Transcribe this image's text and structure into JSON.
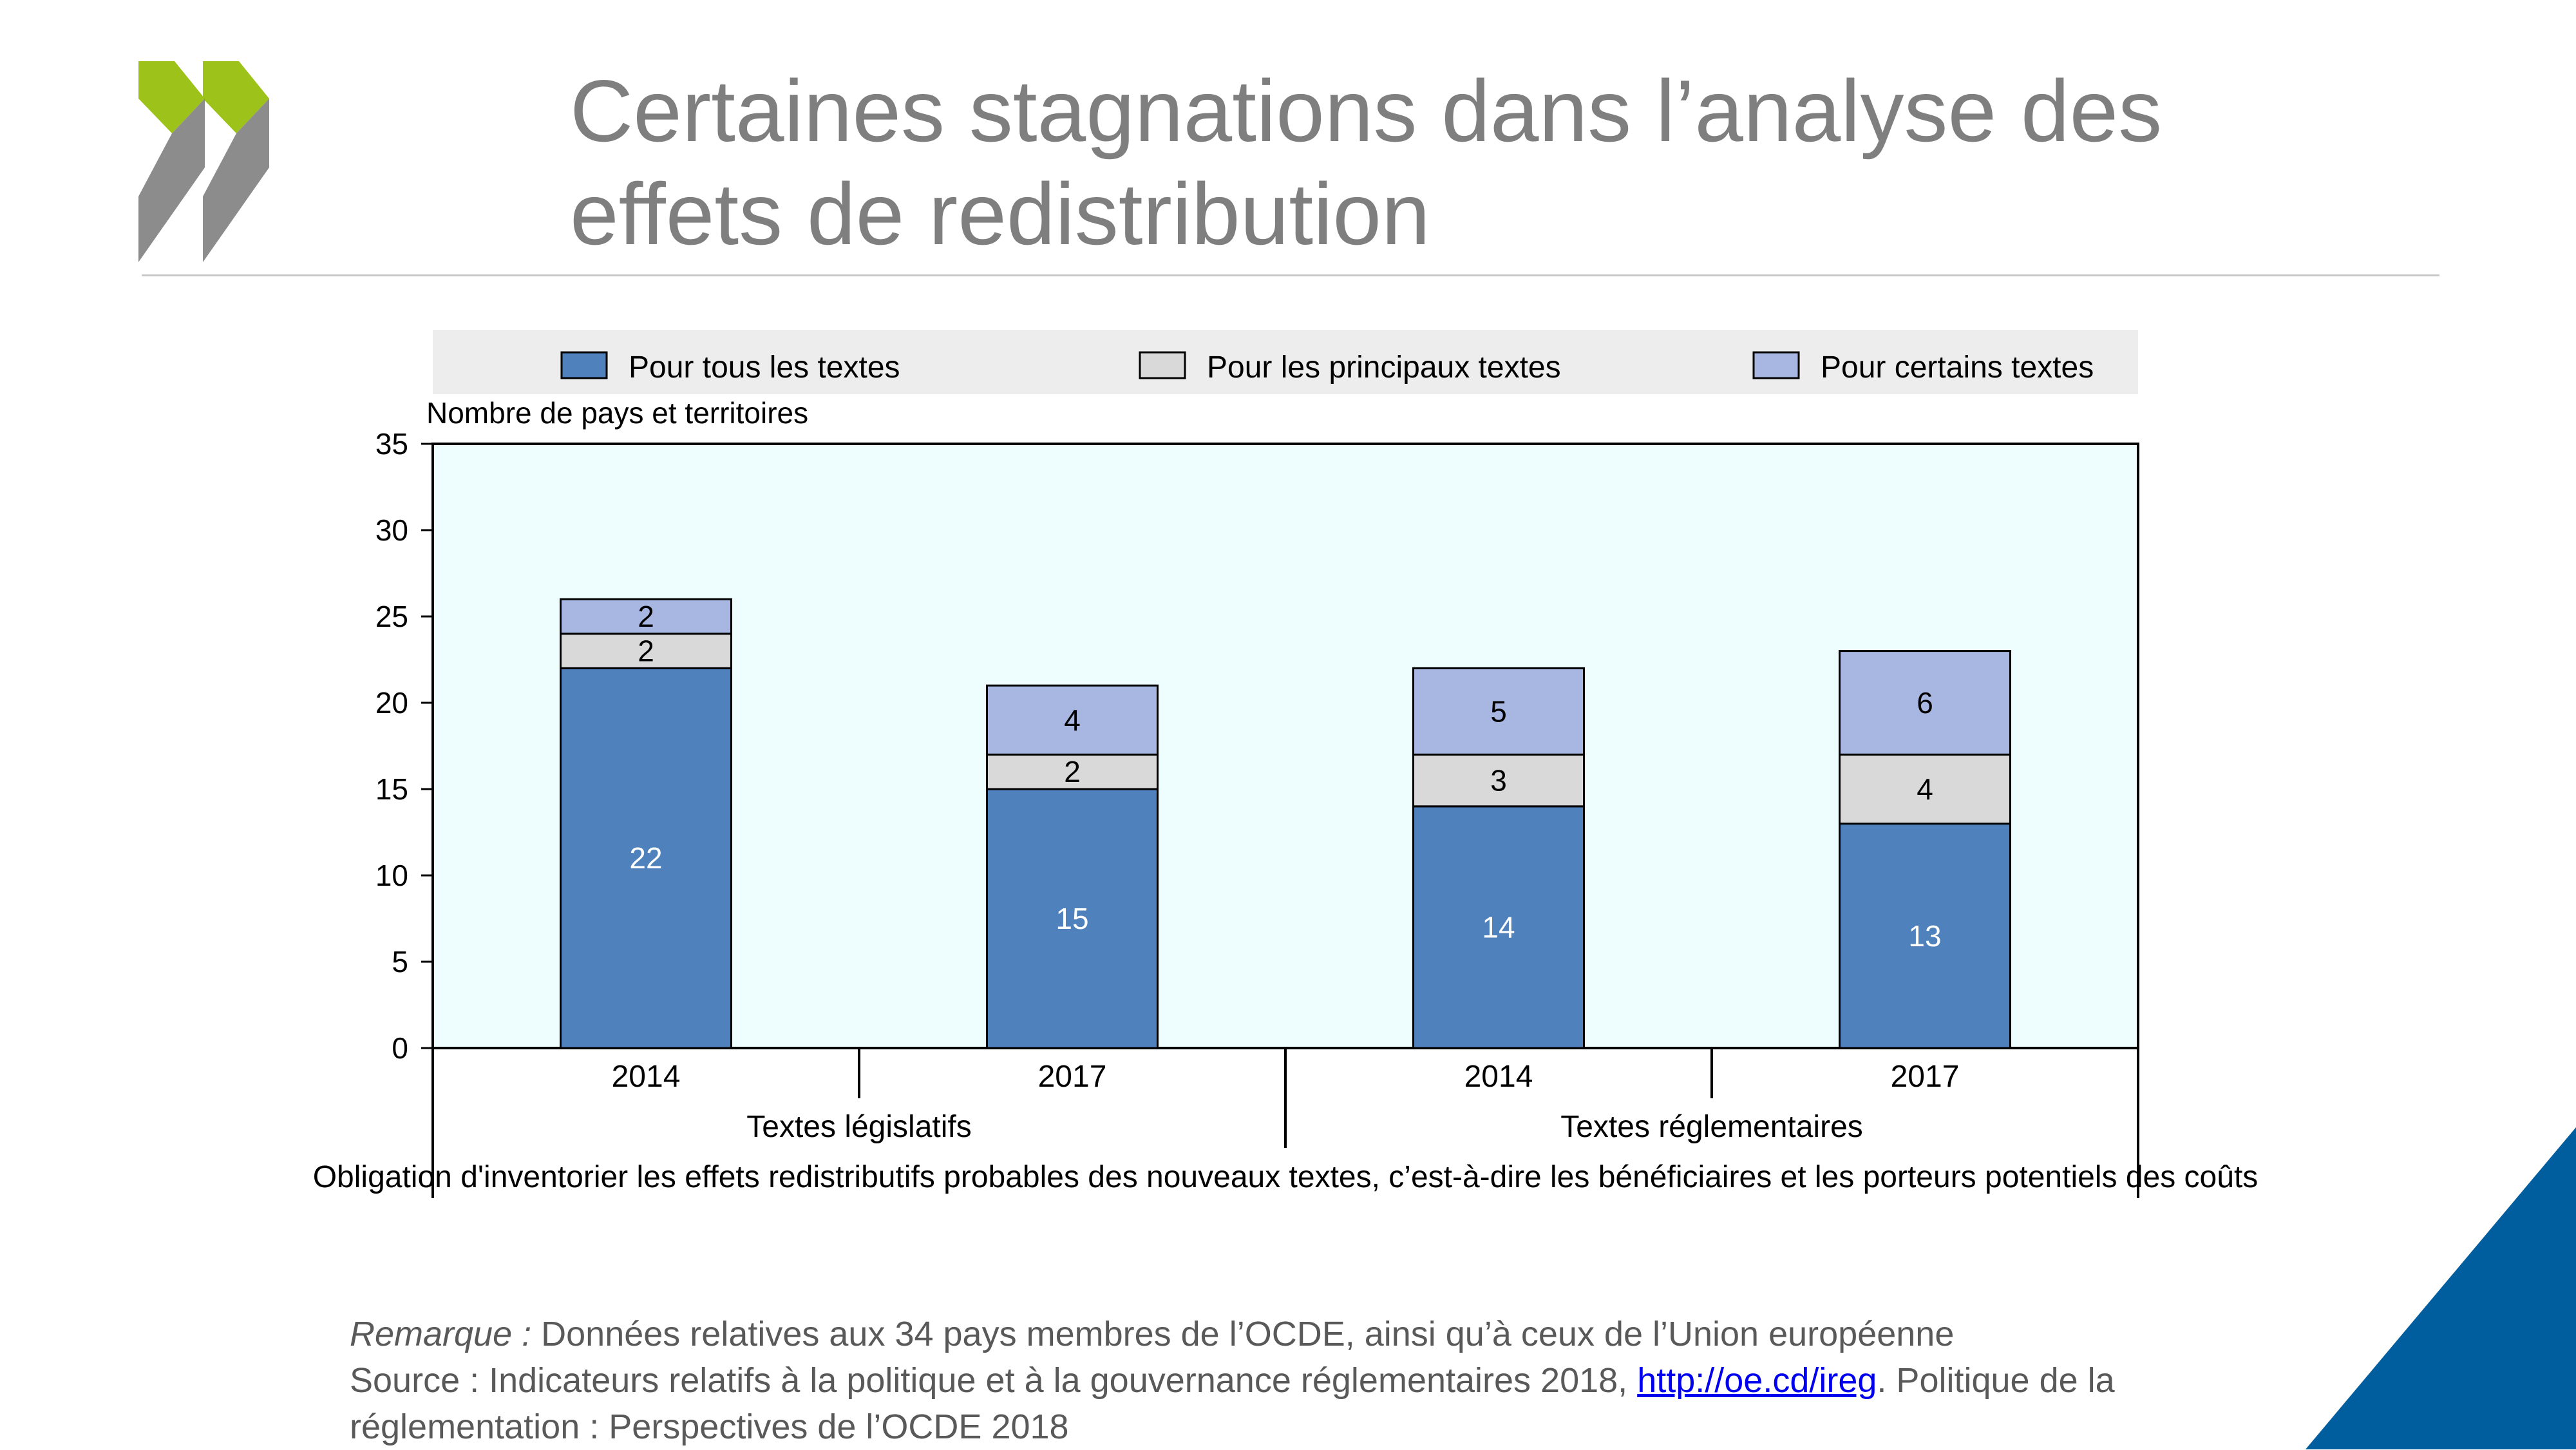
{
  "header": {
    "title_line1": "Certaines stagnations dans l’analyse des",
    "title_line2": "effets de redistribution"
  },
  "colors": {
    "logo_green": "#9dc31a",
    "logo_gray": "#8c8c8c",
    "plot_bg": "#eefefe",
    "legend_bg": "#ededed",
    "corner_blue": "#005e9e"
  },
  "chart_data": {
    "type": "bar",
    "stacked": true,
    "ylabel": "Nombre de pays et territoires",
    "ylim": [
      0,
      35
    ],
    "yticks": [
      0,
      5,
      10,
      15,
      20,
      25,
      30,
      35
    ],
    "categories": [
      "2014",
      "2017",
      "2014",
      "2017"
    ],
    "groups": [
      {
        "label": "Textes législatifs",
        "categories": [
          "2014",
          "2017"
        ]
      },
      {
        "label": "Textes réglementaires",
        "categories": [
          "2014",
          "2017"
        ]
      }
    ],
    "xlabel": "Obligation d'inventorier les effets redistributifs probables des nouveaux textes, c’est-à-dire les bénéficiaires et les porteurs potentiels des coûts",
    "series": [
      {
        "name": "Pour tous les textes",
        "color": "#4f81bd",
        "label_color": "#ffffff",
        "values": [
          22,
          15,
          14,
          13
        ]
      },
      {
        "name": "Pour les principaux textes",
        "color": "#d9d9d9",
        "label_color": "#000000",
        "values": [
          2,
          2,
          3,
          4
        ]
      },
      {
        "name": "Pour certains textes",
        "color": "#a8b7e2",
        "label_color": "#000000",
        "values": [
          2,
          4,
          5,
          6
        ]
      }
    ],
    "legend_position": "top",
    "grid": false
  },
  "notes": {
    "remark_label": "Remarque :",
    "remark_text": " Données relatives aux 34 pays membres de l’OCDE, ainsi qu’à ceux de l’Union européenne",
    "source_prefix": "Source : Indicateurs relatifs à la politique et à la gouvernance réglementaires 2018, ",
    "source_link": "http://oe.cd/ireg",
    "source_suffix": ". Politique de la réglementation : Perspectives de l’OCDE 2018"
  }
}
